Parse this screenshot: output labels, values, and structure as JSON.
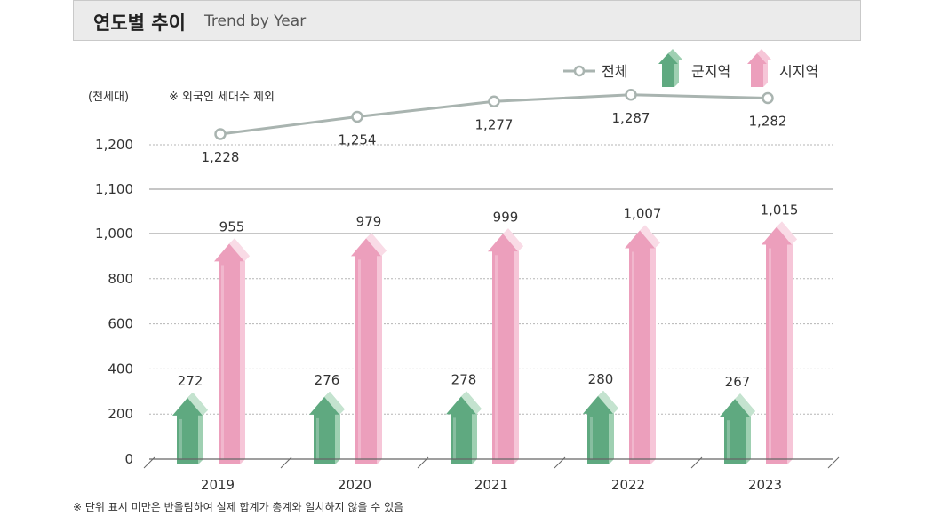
{
  "header": {
    "title_ko": "연도별 추이",
    "title_en": "Trend by Year"
  },
  "unit_label": "(천세대)",
  "note": "※ 외국인 세대수 제외",
  "footnote": "※ 단위 표시 미만은 반올림하여 실제 합계가 총계와 일치하지 않을 수 있음",
  "colors": {
    "total_line": "#a9b4b0",
    "county_front": "#5fa980",
    "county_side": "#9fd0b2",
    "county_top": "#c4e3cf",
    "city_front": "#ec9fbc",
    "city_side": "#f6c6d8",
    "city_top": "#f9dbe6"
  },
  "chart_data": {
    "type": "bar",
    "categories": [
      "2019",
      "2020",
      "2021",
      "2022",
      "2023"
    ],
    "series": [
      {
        "name": "군지역",
        "kind": "bar",
        "values": [
          272,
          276,
          278,
          280,
          267
        ]
      },
      {
        "name": "시지역",
        "kind": "bar",
        "values": [
          955,
          979,
          999,
          1007,
          1015
        ]
      },
      {
        "name": "전체",
        "kind": "line",
        "values": [
          1228,
          1254,
          1277,
          1287,
          1282
        ]
      }
    ],
    "value_labels": {
      "county": [
        "272",
        "276",
        "278",
        "280",
        "267"
      ],
      "city": [
        "955",
        "979",
        "999",
        "1,007",
        "1,015"
      ],
      "total": [
        "1,228",
        "1,254",
        "1,277",
        "1,287",
        "1,282"
      ]
    },
    "y_ticks": [
      {
        "value": 0,
        "label": "0"
      },
      {
        "value": 200,
        "label": "200"
      },
      {
        "value": 400,
        "label": "400"
      },
      {
        "value": 600,
        "label": "600"
      },
      {
        "value": 800,
        "label": "800"
      },
      {
        "value": 1000,
        "label": "1,000"
      },
      {
        "value": 1100,
        "label": "1,100"
      },
      {
        "value": 1200,
        "label": "1,200"
      }
    ],
    "legend": [
      "전체",
      "군지역",
      "시지역"
    ],
    "legend_position": "top-right",
    "ylabel": "(천세대)",
    "grid": true
  }
}
